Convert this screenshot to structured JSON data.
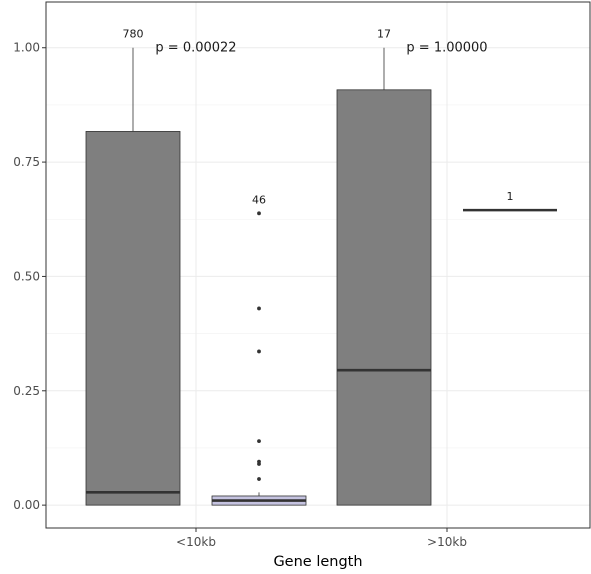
{
  "chart_data": {
    "type": "box",
    "xlabel": "Gene length",
    "ylabel": "",
    "categories": [
      "<10kb",
      ">10kb"
    ],
    "ylim": [
      -0.05,
      1.1
    ],
    "yticks": [
      0.0,
      0.25,
      0.5,
      0.75,
      1.0
    ],
    "ytick_labels": [
      "0.00",
      "0.25",
      "0.50",
      "0.75",
      "1.00"
    ],
    "grid": true,
    "boxes": [
      {
        "category": "<10kb",
        "group": 1,
        "fill": "#7f7f7f",
        "q1": 0.0,
        "median": 0.028,
        "q3": 0.817,
        "whisker_low": 0.0,
        "whisker_high": 1.0,
        "outliers": [],
        "count": "780"
      },
      {
        "category": "<10kb",
        "group": 2,
        "fill": "#c5c3e0",
        "q1": 0.0,
        "median": 0.01,
        "q3": 0.02,
        "whisker_low": 0.0,
        "whisker_high": 0.028,
        "outliers": [
          0.638,
          0.43,
          0.336,
          0.14,
          0.095,
          0.09,
          0.057
        ],
        "count": "46"
      },
      {
        "category": ">10kb",
        "group": 1,
        "fill": "#7f7f7f",
        "q1": 0.0,
        "median": 0.295,
        "q3": 0.908,
        "whisker_low": 0.0,
        "whisker_high": 1.0,
        "outliers": [],
        "count": "17"
      },
      {
        "category": ">10kb",
        "group": 2,
        "fill": "#c5c3e0",
        "q1": 0.645,
        "median": 0.645,
        "q3": 0.645,
        "whisker_low": 0.645,
        "whisker_high": 0.645,
        "outliers": [],
        "count": "1"
      }
    ],
    "annotations": [
      {
        "category": "<10kb",
        "text": "p = 0.00022",
        "y": 1.0
      },
      {
        "category": ">10kb",
        "text": "p = 1.00000",
        "y": 1.0
      }
    ]
  }
}
